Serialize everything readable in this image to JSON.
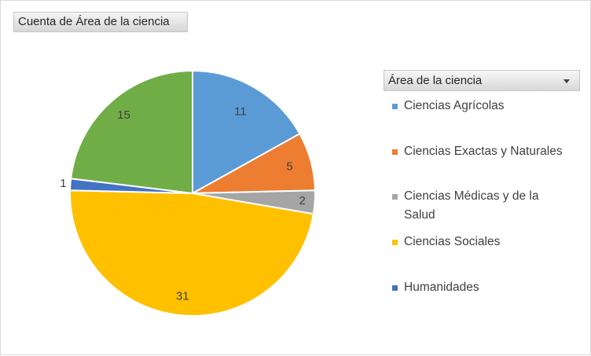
{
  "field_button": {
    "label": "Cuenta de Área de la ciencia"
  },
  "legend": {
    "header": "Área de la ciencia",
    "dropdown_icon": "chevron-down-icon"
  },
  "chart_data": {
    "type": "pie",
    "categories": [
      "Ciencias Agrícolas",
      "Ciencias Exactas y Naturales",
      "Ciencias Médicas y de la Salud",
      "Ciencias Sociales",
      "Humanidades",
      "(sin etiqueta)"
    ],
    "values": [
      11,
      5,
      2,
      31,
      1,
      15
    ],
    "colors": [
      "#5b9bd5",
      "#ed7d31",
      "#a5a5a5",
      "#ffc000",
      "#4472c4",
      "#70ad47"
    ],
    "legend_entries": [
      "Ciencias Agrícolas",
      "Ciencias Exactas y Naturales",
      "Ciencias Médicas y de la Salud",
      "Ciencias Sociales",
      "Humanidades"
    ],
    "data_labels": [
      "11",
      "5",
      "2",
      "31",
      "1",
      "15"
    ],
    "legend_position": "right",
    "start_angle": "12 o'clock, clockwise"
  }
}
